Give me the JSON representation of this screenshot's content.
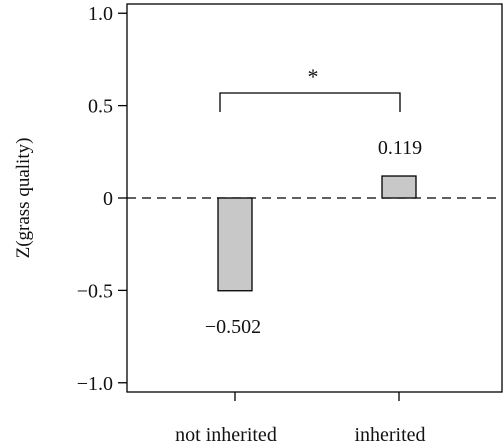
{
  "chart_data": {
    "type": "bar",
    "categories": [
      "not inherited",
      "inherited"
    ],
    "values": [
      -0.502,
      0.119
    ],
    "value_labels": [
      "−0.502",
      "0.119"
    ],
    "title": "",
    "xlabel": "",
    "ylabel": "Z(grass quality)",
    "ylim": [
      -1.05,
      1.05
    ],
    "yticks": [
      1.0,
      0.5,
      0,
      -0.5,
      -1.0
    ],
    "ytick_labels": [
      "1.0",
      "0.5",
      "0",
      "−0.5",
      "−1.0"
    ],
    "reference_line": {
      "y": 0,
      "style": "dashed"
    },
    "significance": {
      "between": [
        "not inherited",
        "inherited"
      ],
      "label": "*"
    },
    "bar_color": "#c8c8c8",
    "bar_edge_color": "#000000",
    "grid": false,
    "legend": "none"
  }
}
